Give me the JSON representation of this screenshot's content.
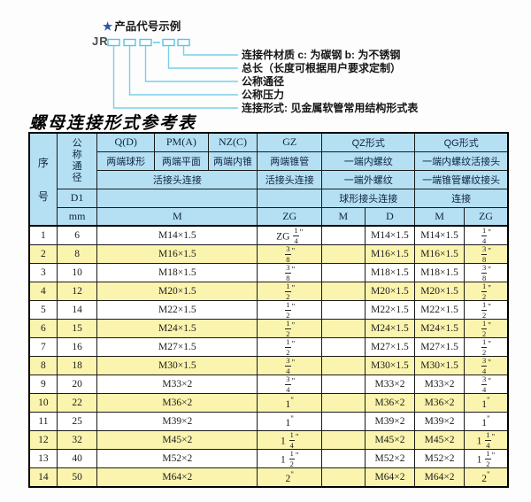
{
  "colors": {
    "header_bg": "#b5e0f4",
    "row_alt_bg": "#faf4ae",
    "diagram_line_blue": "#79cfe9",
    "star_blue": "#2b53a8",
    "border_black": "#000000"
  },
  "diagram": {
    "heading_star": "★",
    "heading": "产品代号示例",
    "code_prefix": "JR",
    "labels": [
      "连接件材质  c: 为碳钢  b: 为不锈钢",
      "总长（长度可根据用户要求定制）",
      "公称通径",
      "公称压力",
      "连接形式: 见金属软管常用结构形式表"
    ]
  },
  "title": "螺母连接形式参考表",
  "table": {
    "header": {
      "seq": "序号",
      "nominal_diameter": "公称通径",
      "d1": "D1",
      "unit_mm": "mm",
      "q_code": "Q(D)",
      "q_ends": "两端球形",
      "pm_code": "PM(A)",
      "pm_ends": "两端平面",
      "nz_code": "NZ(C)",
      "nz_ends": "两端内锥",
      "qpn_connection": "活接头连接",
      "qpn_unit": "M",
      "gz_code": "GZ",
      "gz_ends": "两端锥管",
      "gz_connection": "活接头连接",
      "gz_unit": "ZG",
      "qz_code": "QZ形式",
      "qz_row2": "一端内螺纹",
      "qz_row3": "一端外螺纹",
      "qz_row4": "球形接头连接",
      "qz_unit_m": "M",
      "qz_unit_d": "D",
      "qg_code": "QG形式",
      "qg_row2": "一端内螺纹活接头",
      "qg_row3": "一端锥管螺纹接头",
      "qg_row4": "连接",
      "qg_unit_m": "M",
      "qg_unit_zg": "ZG"
    },
    "rows": [
      {
        "seq": "1",
        "dn": "6",
        "m": "M14×1.5",
        "gz": "ZG 1/4\"",
        "qz_m": "",
        "qz_d": "M14×1.5",
        "qg_m": "M14×1.5",
        "qg_zg": "1/4\""
      },
      {
        "seq": "2",
        "dn": "8",
        "m": "M16×1.5",
        "gz": "3/8\"",
        "qz_m": "",
        "qz_d": "M16×1.5",
        "qg_m": "M16×1.5",
        "qg_zg": "3/8\""
      },
      {
        "seq": "3",
        "dn": "10",
        "m": "M18×1.5",
        "gz": "3/8\"",
        "qz_m": "",
        "qz_d": "M18×1.5",
        "qg_m": "M18×1.5",
        "qg_zg": "3/8\""
      },
      {
        "seq": "4",
        "dn": "12",
        "m": "M20×1.5",
        "gz": "1/2\"",
        "qz_m": "",
        "qz_d": "M20×1.5",
        "qg_m": "M20×1.5",
        "qg_zg": "1/2\""
      },
      {
        "seq": "5",
        "dn": "14",
        "m": "M22×1.5",
        "gz": "1/2\"",
        "qz_m": "",
        "qz_d": "M22×1.5",
        "qg_m": "M22×1.5",
        "qg_zg": "1/2\""
      },
      {
        "seq": "6",
        "dn": "15",
        "m": "M24×1.5",
        "gz": "1/2\"",
        "qz_m": "",
        "qz_d": "M24×1.5",
        "qg_m": "M24×1.5",
        "qg_zg": "1/2\""
      },
      {
        "seq": "7",
        "dn": "16",
        "m": "M27×1.5",
        "gz": "1/2\"",
        "qz_m": "",
        "qz_d": "M27×1.5",
        "qg_m": "M27×1.5",
        "qg_zg": "1/2\""
      },
      {
        "seq": "8",
        "dn": "18",
        "m": "M30×1.5",
        "gz": "3/4\"",
        "qz_m": "",
        "qz_d": "M30×1.5",
        "qg_m": "M30×1.5",
        "qg_zg": "3/4\""
      },
      {
        "seq": "9",
        "dn": "20",
        "m": "M33×2",
        "gz": "3/4\"",
        "qz_m": "",
        "qz_d": "M33×2",
        "qg_m": "M33×2",
        "qg_zg": "3/4\""
      },
      {
        "seq": "10",
        "dn": "22",
        "m": "M36×2",
        "gz": "1\"",
        "qz_m": "",
        "qz_d": "M36×2",
        "qg_m": "M36×2",
        "qg_zg": "1\""
      },
      {
        "seq": "11",
        "dn": "25",
        "m": "M39×2",
        "gz": "1\"",
        "qz_m": "",
        "qz_d": "M39×2",
        "qg_m": "M39×2",
        "qg_zg": "1\""
      },
      {
        "seq": "12",
        "dn": "32",
        "m": "M45×2",
        "gz": "1 1/4\"",
        "qz_m": "",
        "qz_d": "M45×2",
        "qg_m": "M45×2",
        "qg_zg": "1 1/4\""
      },
      {
        "seq": "13",
        "dn": "40",
        "m": "M52×2",
        "gz": "1 1/2\"",
        "qz_m": "",
        "qz_d": "M52×2",
        "qg_m": "M52×2",
        "qg_zg": "1 1/2\""
      },
      {
        "seq": "14",
        "dn": "50",
        "m": "M64×2",
        "gz": "2\"",
        "qz_m": "",
        "qz_d": "M64×2",
        "qg_m": "M64×2",
        "qg_zg": "2\""
      }
    ]
  }
}
